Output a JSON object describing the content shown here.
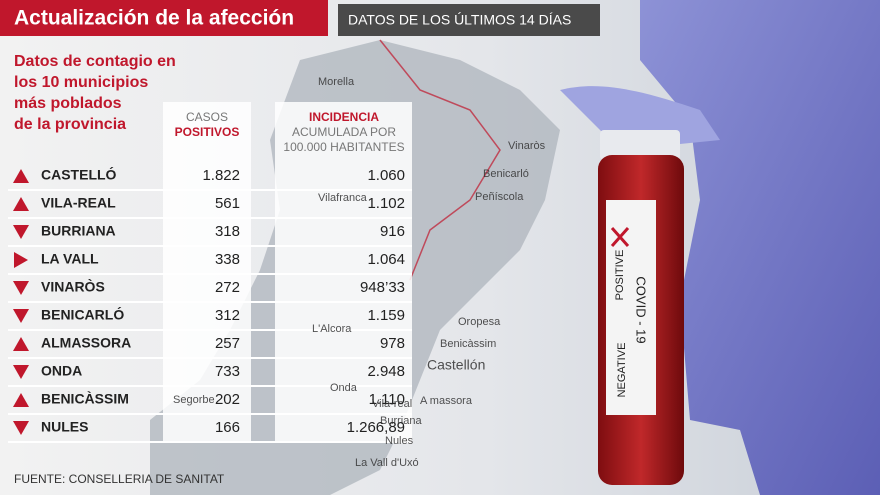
{
  "header": {
    "title": "Actualización de la afección",
    "subtitle": "DATOS DE LOS ÚLTIMOS 14 DÍAS"
  },
  "intro": [
    "Datos de contagio en",
    "los 10 municipios",
    "más poblados",
    "de la provincia"
  ],
  "table": {
    "columns": [
      {
        "lines": [
          "CASOS",
          "POSITIVOS"
        ]
      },
      {
        "lines": [
          "INCIDENCIA",
          "ACUMULADA POR",
          "100.000 HABITANTES"
        ]
      }
    ],
    "rows": [
      [
        "CASTELLÓ",
        "1.822",
        "1.060"
      ],
      [
        "VILA-REAL",
        "561",
        "1.102"
      ],
      [
        "BURRIANA",
        "318",
        "916"
      ],
      [
        "LA VALL",
        "338",
        "1.064"
      ],
      [
        "VINARÒS",
        "272",
        "948’33"
      ],
      [
        "BENICARLÓ",
        "312",
        "1.159"
      ],
      [
        "ALMASSORA",
        "257",
        "978"
      ],
      [
        "ONDA",
        "733",
        "2.948"
      ],
      [
        "BENICÀSSIM",
        "202",
        "1.110"
      ],
      [
        "NULES",
        "166",
        "1.266,89"
      ]
    ]
  },
  "map": {
    "places": [
      "Morella",
      "Vinaròs",
      "Benicarló",
      "Peñíscola",
      "Vilafranca",
      "Oropesa",
      "Benicàssim",
      "Castellón",
      "L'Alcora",
      "Onda",
      "Vila-real",
      "A massora",
      "Segorbe",
      "Burriana",
      "Nules",
      "La Vall d'Uxó"
    ]
  },
  "photo": {
    "labels": [
      "COVID - 19",
      "POSITIVE",
      "NEGATIVE"
    ]
  },
  "source": "FUENTE: CONSELLERIA DE SANITAT"
}
